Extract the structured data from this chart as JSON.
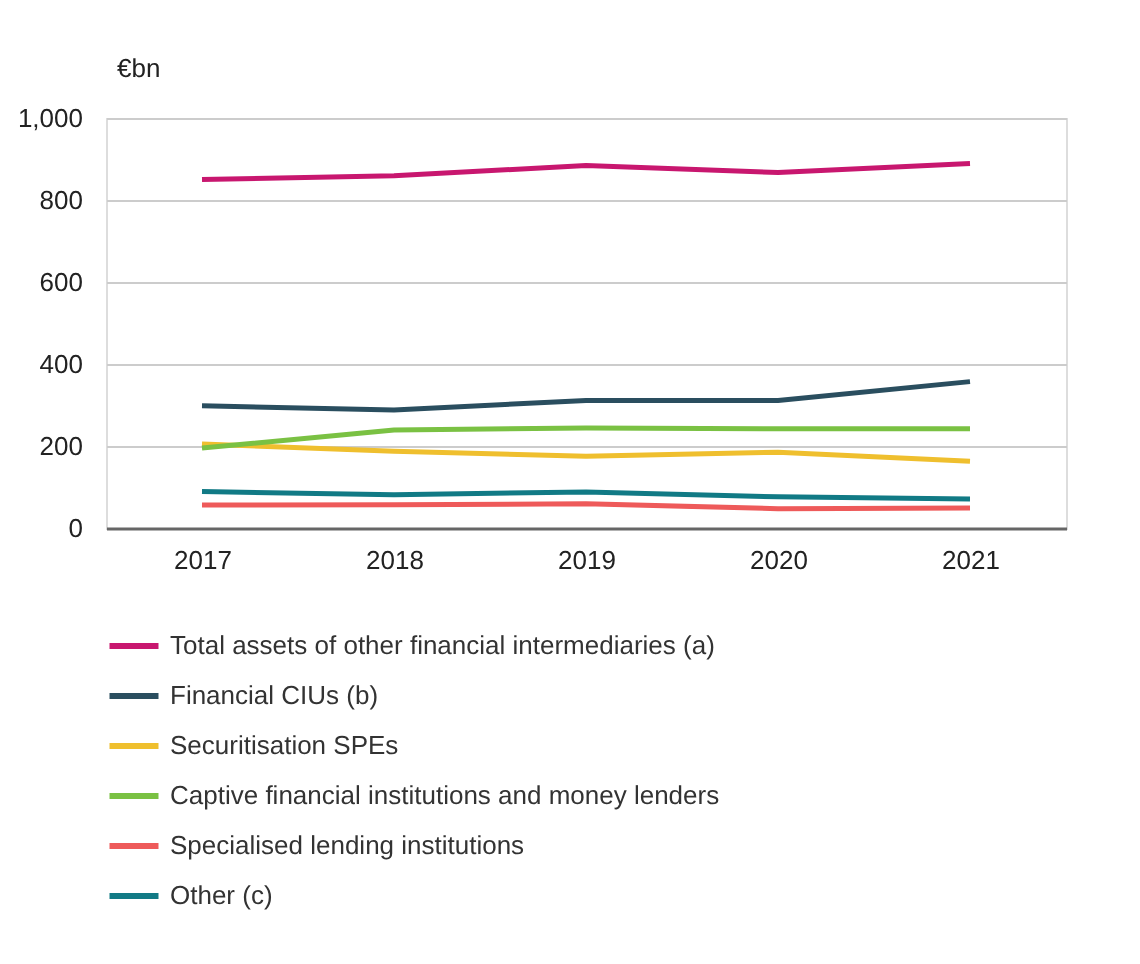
{
  "chart_data": {
    "type": "line",
    "ylabel": "€bn",
    "categories": [
      "2017",
      "2018",
      "2019",
      "2020",
      "2021"
    ],
    "series": [
      {
        "name": "Total assets of other financial intermediaries (a)",
        "color": "#c8176f",
        "values": [
          850,
          859,
          884,
          867,
          889
        ]
      },
      {
        "name": "Financial CIUs (b)",
        "color": "#2a4e5f",
        "values": [
          298,
          288,
          311,
          311,
          357
        ]
      },
      {
        "name": "Securitisation SPEs",
        "color": "#efbf2e",
        "values": [
          205,
          187,
          175,
          185,
          163
        ]
      },
      {
        "name": "Captive financial institutions and money lenders",
        "color": "#7ac143",
        "values": [
          195,
          239,
          244,
          242,
          242
        ]
      },
      {
        "name": "Specialised lending institutions",
        "color": "#ee5a5a",
        "values": [
          56,
          57,
          59,
          47,
          49
        ]
      },
      {
        "name": "Other (c)",
        "color": "#117a85",
        "values": [
          89,
          81,
          88,
          76,
          71
        ]
      }
    ],
    "ylim": [
      0,
      1000
    ],
    "yticks": [
      0,
      200,
      400,
      600,
      800,
      {
        "value": 1000,
        "label": "1,000"
      }
    ],
    "grid": "y",
    "legend": "bottom",
    "line_style": "solid",
    "marker": "none"
  }
}
